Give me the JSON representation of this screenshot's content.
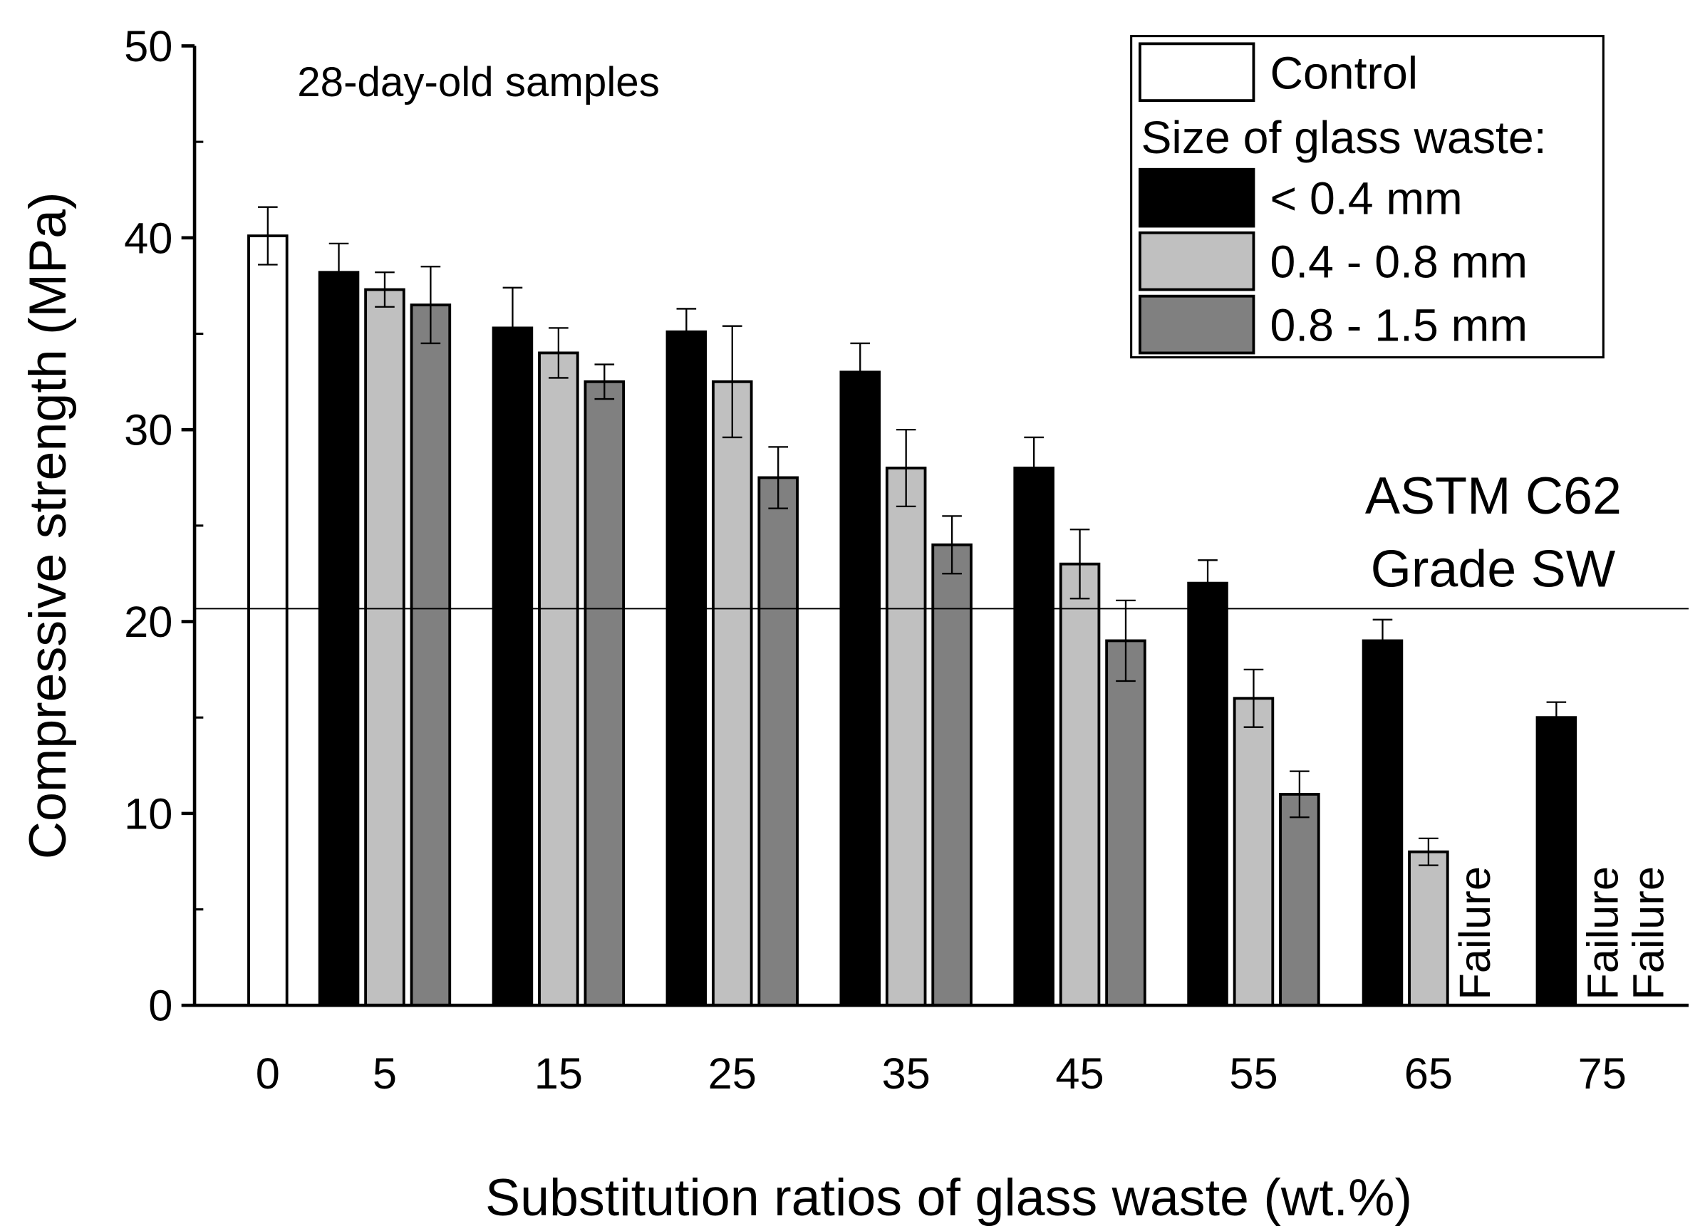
{
  "chart_data": {
    "type": "bar",
    "title": "",
    "annotation": "28-day-old samples",
    "xlabel": "Substitution ratios of glass waste (wt.%)",
    "ylabel": "Compressive strength (MPa)",
    "ylim": [
      0,
      50
    ],
    "yticks": [
      "0",
      "10",
      "20",
      "30",
      "40",
      "50"
    ],
    "categories": [
      "0",
      "5",
      "15",
      "25",
      "35",
      "45",
      "55",
      "65",
      "75"
    ],
    "control": {
      "name": "Control",
      "category": "0",
      "value": 40.1,
      "error": 1.5,
      "color": "#ffffff"
    },
    "legend_subtitle": "Size of glass waste:",
    "legend_position": "top-right",
    "series": [
      {
        "name": "< 0.4 mm",
        "color": "#000000",
        "values": [
          null,
          38.2,
          35.3,
          35.1,
          33.0,
          28.0,
          22.0,
          19.0,
          15.0
        ],
        "errors": [
          null,
          1.5,
          2.1,
          1.2,
          1.5,
          1.6,
          1.2,
          1.1,
          0.8
        ]
      },
      {
        "name": "0.4 - 0.8 mm",
        "color": "#c0c0c0",
        "values": [
          null,
          37.3,
          34.0,
          32.5,
          28.0,
          23.0,
          16.0,
          8.0,
          null
        ],
        "errors": [
          null,
          0.9,
          1.3,
          2.9,
          2.0,
          1.8,
          1.5,
          0.7,
          null
        ]
      },
      {
        "name": "0.8 - 1.5 mm",
        "color": "#808080",
        "values": [
          null,
          36.5,
          32.5,
          27.5,
          24.0,
          19.0,
          11.0,
          null,
          null
        ],
        "errors": [
          null,
          2.0,
          0.9,
          1.6,
          1.5,
          2.1,
          1.2,
          null,
          null
        ]
      }
    ],
    "failure_label": "Failure",
    "failures": [
      {
        "category": "65",
        "series": "0.8 - 1.5 mm"
      },
      {
        "category": "75",
        "series": "0.4 - 0.8 mm"
      },
      {
        "category": "75",
        "series": "0.8 - 1.5 mm"
      }
    ],
    "reference_line": {
      "value": 20.7,
      "label_line1": "ASTM C62",
      "label_line2": "Grade SW"
    }
  }
}
